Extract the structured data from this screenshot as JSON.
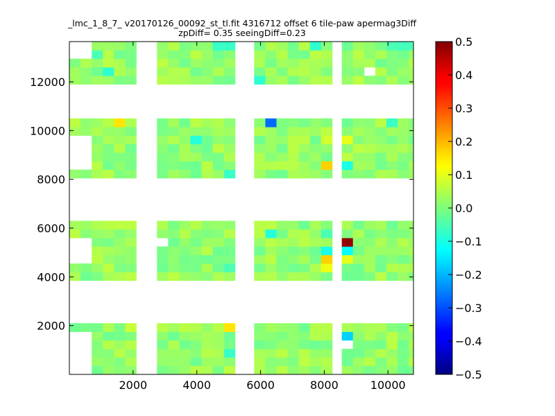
{
  "chart_data": {
    "type": "heatmap",
    "title": "_lmc_1_8_7_ v20170126_00092_st_tl.fit 4316712 offset 6 tile-paw apermag3Diff",
    "subtitle": "zpDiff= 0.35 seeingDiff=0.23",
    "xlabel": "",
    "ylabel": "",
    "xlim": [
      0,
      10800
    ],
    "ylim": [
      0,
      13650
    ],
    "xticks": [
      2000,
      4000,
      6000,
      8000,
      10000
    ],
    "yticks": [
      2000,
      4000,
      6000,
      8000,
      10000,
      12000
    ],
    "colormap": "jet",
    "colorbar": {
      "vmin": -0.5,
      "vmax": 0.5,
      "ticks": [
        0.5,
        0.4,
        0.3,
        0.2,
        0.1,
        0.0,
        -0.1,
        -0.2,
        -0.3,
        -0.4,
        -0.5
      ],
      "tick_labels": [
        "0.5",
        "0.4",
        "0.3",
        "0.2",
        "0.1",
        "0.0",
        "−0.1",
        "−0.2",
        "−0.3",
        "−0.4",
        "−0.5"
      ]
    },
    "cell_size": 350,
    "data_columns_x": [
      0,
      350,
      700,
      1050,
      1400,
      1750,
      2050,
      2750,
      3100,
      3450,
      3800,
      4150,
      4500,
      4850,
      5800,
      6150,
      6500,
      6850,
      7200,
      7550,
      7900,
      8200,
      8550,
      8900,
      9250,
      9600,
      9950,
      10300,
      10650
    ],
    "tile_blocks": [
      {
        "x": [
          0,
          2050
        ],
        "y": [
          0,
          13650
        ]
      },
      {
        "x": [
          2750,
          5200
        ],
        "y": [
          0,
          13650
        ]
      },
      {
        "x": [
          5800,
          8200
        ],
        "y": [
          0,
          13650
        ]
      },
      {
        "x": [
          8550,
          10800
        ],
        "y": [
          0,
          13650
        ]
      }
    ],
    "missing_row_bands": [
      {
        "y": [
          2150,
          3950
        ]
      },
      {
        "y": [
          6200,
          7950
        ]
      },
      {
        "y": [
          10350,
          11850
        ]
      }
    ],
    "missing_regions": [
      {
        "x": [
          0,
          700
        ],
        "y": [
          0,
          1750
        ]
      },
      {
        "x": [
          0,
          700
        ],
        "y": [
          4450,
          5500
        ]
      },
      {
        "x": [
          0,
          700
        ],
        "y": [
          8550,
          9800
        ]
      },
      {
        "x": [
          0,
          700
        ],
        "y": [
          12850,
          13650
        ]
      },
      {
        "x": [
          2050,
          2400
        ],
        "y": [
          0,
          13650
        ]
      },
      {
        "x": [
          2750,
          3100
        ],
        "y": [
          5300,
          5650
        ]
      },
      {
        "x": [
          8200,
          8550
        ],
        "y": [
          1750,
          2150
        ]
      },
      {
        "x": [
          8550,
          8900
        ],
        "y": [
          1000,
          1400
        ]
      },
      {
        "x": [
          9250,
          9600
        ],
        "y": [
          12100,
          12450
        ]
      }
    ],
    "base_value": 0.02,
    "notable_cells": [
      {
        "x": 1400,
        "y": 10150,
        "value": 0.15
      },
      {
        "x": 6150,
        "y": 10150,
        "value": -0.27
      },
      {
        "x": 7900,
        "y": 8300,
        "value": 0.17
      },
      {
        "x": 7900,
        "y": 9500,
        "value": 0.08
      },
      {
        "x": 8550,
        "y": 8550,
        "value": -0.1
      },
      {
        "x": 8550,
        "y": 9500,
        "value": 0.1
      },
      {
        "x": 8550,
        "y": 5300,
        "value": 0.48
      },
      {
        "x": 8550,
        "y": 4900,
        "value": -0.12
      },
      {
        "x": 8550,
        "y": 4500,
        "value": 0.1
      },
      {
        "x": 7900,
        "y": 4950,
        "value": -0.1
      },
      {
        "x": 7900,
        "y": 4500,
        "value": 0.17
      },
      {
        "x": 7900,
        "y": 4150,
        "value": 0.11
      },
      {
        "x": 4850,
        "y": 1750,
        "value": 0.15
      },
      {
        "x": 8550,
        "y": 1400,
        "value": -0.17
      },
      {
        "x": 1750,
        "y": 1750,
        "value": 0.07
      },
      {
        "x": 2050,
        "y": 12900,
        "value": 0.07
      },
      {
        "x": 2050,
        "y": 12550,
        "value": -0.09
      },
      {
        "x": 350,
        "y": 12900,
        "value": -0.07
      },
      {
        "x": 700,
        "y": 12900,
        "value": -0.05
      },
      {
        "x": 1050,
        "y": 12100,
        "value": -0.08
      },
      {
        "x": 4850,
        "y": 13300,
        "value": -0.07
      },
      {
        "x": 4500,
        "y": 13300,
        "value": -0.07
      },
      {
        "x": 5800,
        "y": 11950,
        "value": -0.08
      },
      {
        "x": 7550,
        "y": 13300,
        "value": -0.08
      },
      {
        "x": 3800,
        "y": 9450,
        "value": -0.09
      },
      {
        "x": 4850,
        "y": 8050,
        "value": -0.07
      },
      {
        "x": 6150,
        "y": 5650,
        "value": -0.09
      },
      {
        "x": 7900,
        "y": 5650,
        "value": -0.05
      },
      {
        "x": 9950,
        "y": 10150,
        "value": -0.07
      },
      {
        "x": 10300,
        "y": 13300,
        "value": -0.06
      },
      {
        "x": 10650,
        "y": 13300,
        "value": -0.05
      },
      {
        "x": 9950,
        "y": 13300,
        "value": -0.05
      },
      {
        "x": 4850,
        "y": 4150,
        "value": -0.05
      },
      {
        "x": 4850,
        "y": 700,
        "value": -0.07
      }
    ]
  }
}
